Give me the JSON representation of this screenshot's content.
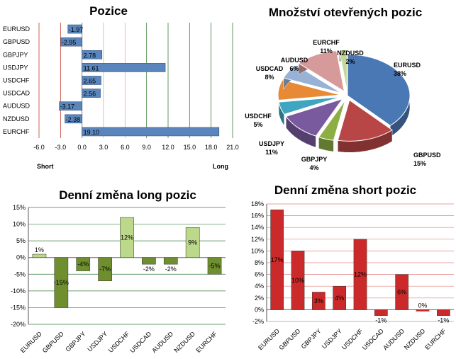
{
  "chart_data": [
    {
      "type": "bar",
      "orientation": "horizontal",
      "title": "Pozice",
      "categories": [
        "EURUSD",
        "GBPUSD",
        "GBPJPY",
        "USDJPY",
        "USDCHF",
        "USDCAD",
        "AUDUSD",
        "NZDUSD",
        "EURCHF"
      ],
      "values": [
        -1.97,
        -2.95,
        2.78,
        11.61,
        2.65,
        2.56,
        -3.17,
        -2.38,
        19.1
      ],
      "value_labels": [
        "-1.97",
        "-2.95",
        "2.78",
        "11.61",
        "2.65",
        "2.56",
        "-3.17",
        "-2.38",
        "19.10"
      ],
      "xlim": [
        -6,
        21
      ],
      "ticks": [
        -6,
        -3,
        0,
        3,
        6,
        9,
        12,
        15,
        18,
        21
      ],
      "tick_labels": [
        "-6.0",
        "-3.0",
        "0.0",
        "3.0",
        "6.0",
        "9.0",
        "12.0",
        "15.0",
        "18.0",
        "21.0"
      ],
      "short_label": "Short",
      "long_label": "Long",
      "colors": {
        "bar": "#5b86bd",
        "grid_low": "#c0392b",
        "grid_high": "#3a7d3a"
      }
    },
    {
      "type": "pie",
      "title": "Množství otevřených pozic",
      "slices": [
        {
          "name": "EURUSD",
          "value": 38,
          "label": "38%",
          "color": "#4a78b5"
        },
        {
          "name": "GBPUSD",
          "value": 15,
          "label": "15%",
          "color": "#b94646"
        },
        {
          "name": "GBPJPY",
          "value": 4,
          "label": "4%",
          "color": "#8cae45"
        },
        {
          "name": "USDJPY",
          "value": 11,
          "label": "11%",
          "color": "#7a5a9e"
        },
        {
          "name": "USDCHF",
          "value": 5,
          "label": "5%",
          "color": "#3fa5c0"
        },
        {
          "name": "USDCAD",
          "value": 8,
          "label": "8%",
          "color": "#e88a35"
        },
        {
          "name": "AUDUSD",
          "value": 6,
          "label": "6%",
          "color": "#97b2d6"
        },
        {
          "name": "EURCHF",
          "value": 11,
          "label": "11%",
          "color": "#d79a9a"
        },
        {
          "name": "NZDUSD",
          "value": 2,
          "label": "2%",
          "color": "#c4d79b"
        }
      ]
    },
    {
      "type": "bar",
      "title": "Denní změna long pozic",
      "categories": [
        "EURUSD",
        "GBPUSD",
        "GBPJPY",
        "USDJPY",
        "USDCHF",
        "USDCAD",
        "AUDUSD",
        "NZDUSD",
        "EURCHF"
      ],
      "values": [
        1,
        -15,
        -4,
        -7,
        12,
        -2,
        -2,
        9,
        -5
      ],
      "value_labels": [
        "1%",
        "-15%",
        "-4%",
        "-7%",
        "12%",
        "-2%",
        "-2%",
        "9%",
        "-5%"
      ],
      "ylim": [
        -20,
        15
      ],
      "ticks": [
        -20,
        -15,
        -10,
        -5,
        0,
        5,
        10,
        15
      ],
      "tick_labels": [
        "-20%",
        "-15%",
        "-10%",
        "-5%",
        "0%",
        "5%",
        "10%",
        "15%"
      ],
      "colors": {
        "bar": "#6f8f2e",
        "bar_light": "#bcd88a",
        "grid": "#3a7d3a"
      }
    },
    {
      "type": "bar",
      "title": "Denní změna short pozic",
      "categories": [
        "EURUSD",
        "GBPUSD",
        "GBPJPY",
        "USDJPY",
        "USDCHF",
        "USDCAD",
        "AUDUSD",
        "NZDUSD",
        "EURCHF"
      ],
      "values": [
        17,
        10,
        3,
        4,
        12,
        -1,
        6,
        0,
        -1
      ],
      "value_labels": [
        "17%",
        "10%",
        "3%",
        "4%",
        "12%",
        "-1%",
        "6%",
        "0%",
        "-1%"
      ],
      "ylim": [
        -2,
        18
      ],
      "ticks": [
        -2,
        0,
        2,
        4,
        6,
        8,
        10,
        12,
        14,
        16,
        18
      ],
      "tick_labels": [
        "-2%",
        "0%",
        "2%",
        "4%",
        "6%",
        "8%",
        "10%",
        "12%",
        "14%",
        "16%",
        "18%"
      ],
      "colors": {
        "bar": "#cc2a2a",
        "grid": "#d04040"
      }
    }
  ]
}
